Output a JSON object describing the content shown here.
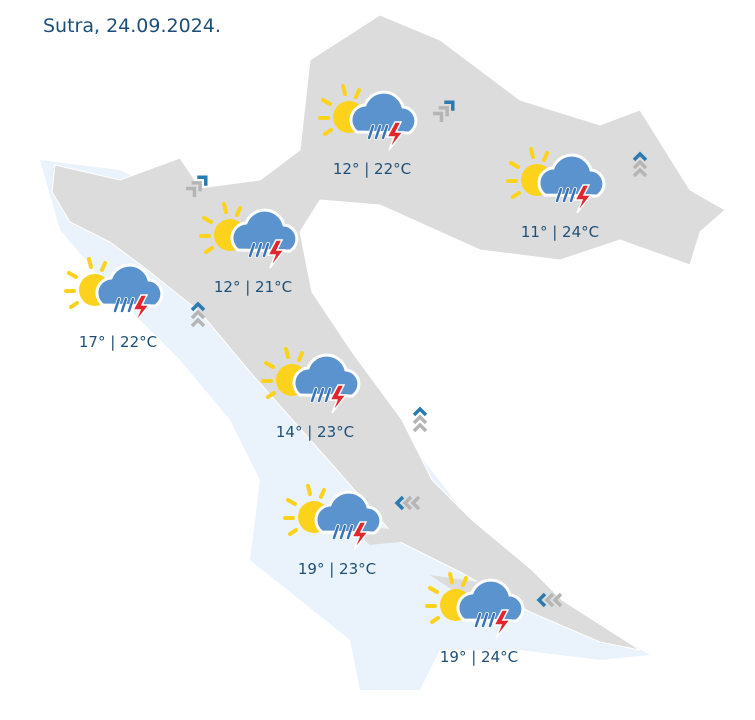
{
  "title": "Sutra, 24.09.2024.",
  "colors": {
    "land": "#dcdcdc",
    "sea": "#eaf3fb",
    "text": "#1e4f78",
    "sun": "#fcd21c",
    "cloud": "#5b93cf",
    "rain": "#3a74b5",
    "bolt": "#e3262d",
    "wind_active": "#2a7bb0",
    "wind_inactive": "#b5b5b5"
  },
  "stations": [
    {
      "id": "zagreb",
      "icon": "sun-cloud-rain-thunder-icon",
      "temp": "12° | 22°C",
      "wind": "north-east"
    },
    {
      "id": "east",
      "icon": "sun-cloud-rain-thunder-icon",
      "temp": "11° | 24°C",
      "wind": "north"
    },
    {
      "id": "rijeka",
      "icon": "sun-cloud-rain-thunder-icon",
      "temp": "12° | 21°C",
      "wind": "north-east"
    },
    {
      "id": "istria",
      "icon": "sun-cloud-rain-thunder-icon",
      "temp": "17° | 22°C",
      "wind": "north"
    },
    {
      "id": "lika-zadar",
      "icon": "sun-cloud-rain-thunder-icon",
      "temp": "14° | 23°C",
      "wind": "north"
    },
    {
      "id": "split",
      "icon": "sun-cloud-rain-thunder-icon",
      "temp": "19° | 23°C",
      "wind": "west"
    },
    {
      "id": "dubrovnik",
      "icon": "sun-cloud-rain-thunder-icon",
      "temp": "19° | 24°C",
      "wind": "west"
    }
  ]
}
